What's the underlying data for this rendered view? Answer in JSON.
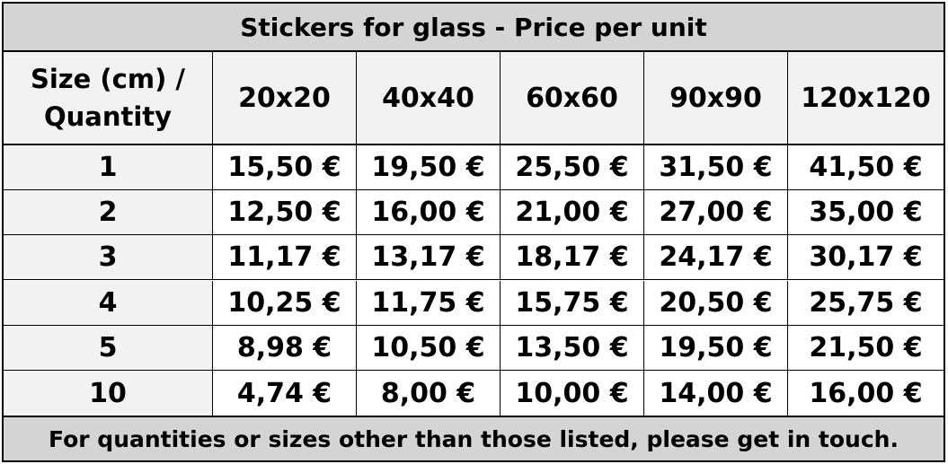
{
  "title": "Stickers for glass  - Price per unit",
  "header": {
    "corner_line1": "Size (cm) /",
    "corner_line2": "Quantity",
    "sizes": [
      "20x20",
      "40x40",
      "60x60",
      "90x90",
      "120x120"
    ]
  },
  "rows": [
    {
      "qty": "1",
      "prices": [
        "15,50 €",
        "19,50 €",
        "25,50 €",
        "31,50 €",
        "41,50 €"
      ]
    },
    {
      "qty": "2",
      "prices": [
        "12,50 €",
        "16,00 €",
        "21,00 €",
        "27,00 €",
        "35,00 €"
      ]
    },
    {
      "qty": "3",
      "prices": [
        "11,17 €",
        "13,17 €",
        "18,17 €",
        "24,17 €",
        "30,17 €"
      ]
    },
    {
      "qty": "4",
      "prices": [
        "10,25 €",
        "11,75 €",
        "15,75 €",
        "20,50 €",
        "25,75 €"
      ]
    },
    {
      "qty": "5",
      "prices": [
        "8,98 €",
        "10,50 €",
        "13,50 €",
        "19,50 €",
        "21,50 €"
      ]
    },
    {
      "qty": "10",
      "prices": [
        "4,74 €",
        "8,00 €",
        "10,00 €",
        "14,00 €",
        "16,00 €"
      ]
    }
  ],
  "footer": "For quantities or sizes other than those listed, please get in touch.",
  "colors": {
    "title_bg": "#d4d4d4",
    "header_bg": "#f2f2f2",
    "border": "#000000"
  }
}
